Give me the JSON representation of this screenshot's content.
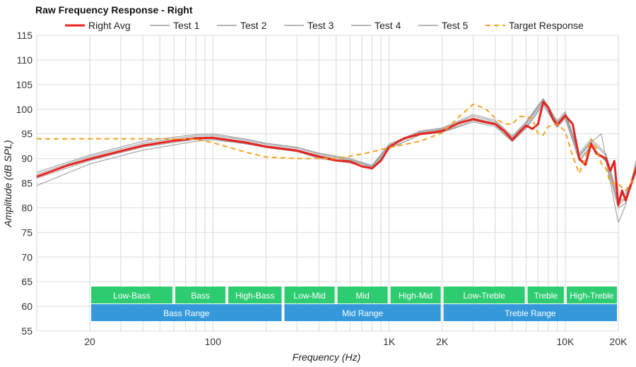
{
  "chart_data": {
    "type": "line",
    "title": "Raw Frequency Response - Right",
    "xlabel": "Frequency (Hz)",
    "ylabel": "Amplitude (dB SPL)",
    "x_scale": "log",
    "xlim": [
      10,
      20000
    ],
    "ylim": [
      55,
      115
    ],
    "y_ticks": [
      55,
      60,
      65,
      70,
      75,
      80,
      85,
      90,
      95,
      100,
      105,
      110,
      115
    ],
    "x_ticks": [
      {
        "value": 20,
        "label": "20"
      },
      {
        "value": 100,
        "label": "100"
      },
      {
        "value": 1000,
        "label": "1K"
      },
      {
        "value": 2000,
        "label": "2K"
      },
      {
        "value": 10000,
        "label": "10K"
      },
      {
        "value": 20000,
        "label": "20K"
      }
    ],
    "colors": {
      "avg": "#e8231f",
      "test": "#9e9e9e",
      "target": "#f5a31a",
      "band": "#2ecc71",
      "range": "#3498db"
    },
    "series": [
      {
        "name": "Right Avg",
        "style": "avg",
        "points": [
          [
            10,
            86.3
          ],
          [
            15,
            88.6
          ],
          [
            20,
            89.9
          ],
          [
            30,
            91.5
          ],
          [
            40,
            92.6
          ],
          [
            60,
            93.6
          ],
          [
            80,
            94.1
          ],
          [
            100,
            94.2
          ],
          [
            150,
            93.3
          ],
          [
            200,
            92.4
          ],
          [
            300,
            91.6
          ],
          [
            400,
            90.4
          ],
          [
            500,
            89.6
          ],
          [
            600,
            89.4
          ],
          [
            700,
            88.4
          ],
          [
            800,
            88.0
          ],
          [
            900,
            89.6
          ],
          [
            1000,
            92.3
          ],
          [
            1200,
            94.0
          ],
          [
            1500,
            95.0
          ],
          [
            1800,
            95.3
          ],
          [
            2000,
            95.6
          ],
          [
            2500,
            97.2
          ],
          [
            3000,
            98.0
          ],
          [
            3500,
            97.4
          ],
          [
            4000,
            97.0
          ],
          [
            4500,
            95.6
          ],
          [
            5000,
            93.8
          ],
          [
            5500,
            95.4
          ],
          [
            6000,
            96.7
          ],
          [
            6500,
            96.0
          ],
          [
            7000,
            97.0
          ],
          [
            7500,
            101.5
          ],
          [
            8000,
            100.4
          ],
          [
            8500,
            98.0
          ],
          [
            9000,
            96.8
          ],
          [
            9500,
            97.8
          ],
          [
            10000,
            98.7
          ],
          [
            11000,
            97.0
          ],
          [
            12000,
            90.0
          ],
          [
            13000,
            88.7
          ],
          [
            14000,
            93.0
          ],
          [
            15000,
            91.0
          ],
          [
            16000,
            90.5
          ],
          [
            17000,
            90.0
          ],
          [
            18000,
            87.5
          ],
          [
            19000,
            89.5
          ],
          [
            20000,
            80.5
          ],
          [
            21000,
            83.5
          ],
          [
            22000,
            81.5
          ],
          [
            24000,
            85.5
          ],
          [
            26000,
            89.3
          ]
        ]
      },
      {
        "name": "Test 1",
        "style": "test",
        "points": [
          [
            10,
            84.5
          ],
          [
            20,
            88.9
          ],
          [
            40,
            91.7
          ],
          [
            80,
            93.5
          ],
          [
            100,
            93.8
          ],
          [
            150,
            93.0
          ],
          [
            200,
            92.3
          ],
          [
            300,
            91.4
          ],
          [
            400,
            90.0
          ],
          [
            600,
            89.1
          ],
          [
            800,
            87.8
          ],
          [
            1000,
            92.0
          ],
          [
            1500,
            94.8
          ],
          [
            2000,
            95.3
          ],
          [
            3000,
            97.4
          ],
          [
            4000,
            96.5
          ],
          [
            5000,
            93.4
          ],
          [
            6000,
            96.1
          ],
          [
            7500,
            100.9
          ],
          [
            9000,
            96.3
          ],
          [
            10000,
            98.1
          ],
          [
            12000,
            89.5
          ],
          [
            14000,
            92.4
          ],
          [
            17000,
            89.4
          ],
          [
            20000,
            79.9
          ],
          [
            22000,
            81.0
          ],
          [
            26000,
            88.7
          ]
        ]
      },
      {
        "name": "Test 2",
        "style": "test",
        "points": [
          [
            10,
            86.8
          ],
          [
            20,
            90.4
          ],
          [
            40,
            93.1
          ],
          [
            80,
            94.6
          ],
          [
            100,
            94.7
          ],
          [
            150,
            93.8
          ],
          [
            200,
            92.9
          ],
          [
            300,
            92.1
          ],
          [
            400,
            90.9
          ],
          [
            600,
            89.8
          ],
          [
            800,
            88.4
          ],
          [
            1000,
            92.7
          ],
          [
            1500,
            95.4
          ],
          [
            2000,
            96.0
          ],
          [
            3000,
            98.6
          ],
          [
            4000,
            97.5
          ],
          [
            5000,
            94.3
          ],
          [
            6000,
            97.2
          ],
          [
            7500,
            102.0
          ],
          [
            9000,
            97.3
          ],
          [
            10000,
            99.2
          ],
          [
            12000,
            90.6
          ],
          [
            14000,
            93.5
          ],
          [
            17000,
            90.6
          ],
          [
            20000,
            81.1
          ],
          [
            22000,
            82.1
          ],
          [
            26000,
            89.8
          ]
        ]
      },
      {
        "name": "Test 3",
        "style": "test",
        "points": [
          [
            10,
            86.0
          ],
          [
            20,
            89.6
          ],
          [
            40,
            92.3
          ],
          [
            80,
            93.9
          ],
          [
            100,
            94.0
          ],
          [
            150,
            93.1
          ],
          [
            200,
            92.2
          ],
          [
            300,
            91.4
          ],
          [
            400,
            90.2
          ],
          [
            600,
            89.3
          ],
          [
            800,
            87.9
          ],
          [
            1000,
            92.1
          ],
          [
            1500,
            94.8
          ],
          [
            2000,
            95.4
          ],
          [
            3000,
            97.7
          ],
          [
            4000,
            96.8
          ],
          [
            5000,
            93.6
          ],
          [
            6000,
            96.4
          ],
          [
            7500,
            101.3
          ],
          [
            9000,
            96.6
          ],
          [
            10000,
            98.4
          ],
          [
            12000,
            89.7
          ],
          [
            14000,
            92.6
          ],
          [
            17000,
            89.6
          ],
          [
            20000,
            77.0
          ],
          [
            22000,
            80.5
          ],
          [
            26000,
            91.5
          ]
        ]
      },
      {
        "name": "Test 4",
        "style": "test",
        "points": [
          [
            10,
            86.5
          ],
          [
            20,
            90.1
          ],
          [
            40,
            92.8
          ],
          [
            80,
            94.3
          ],
          [
            100,
            94.4
          ],
          [
            150,
            93.5
          ],
          [
            200,
            92.6
          ],
          [
            300,
            91.8
          ],
          [
            400,
            90.6
          ],
          [
            600,
            89.6
          ],
          [
            800,
            88.2
          ],
          [
            1000,
            92.5
          ],
          [
            1500,
            95.2
          ],
          [
            2000,
            95.8
          ],
          [
            3000,
            98.2
          ],
          [
            4000,
            97.2
          ],
          [
            5000,
            94.0
          ],
          [
            6000,
            96.9
          ],
          [
            7500,
            101.7
          ],
          [
            9000,
            97.0
          ],
          [
            10000,
            98.9
          ],
          [
            12000,
            90.3
          ],
          [
            14000,
            93.3
          ],
          [
            16000,
            95.0
          ],
          [
            17000,
            90.2
          ],
          [
            20000,
            80.6
          ],
          [
            22000,
            81.8
          ],
          [
            26000,
            90.5
          ]
        ]
      },
      {
        "name": "Test 5",
        "style": "test",
        "points": [
          [
            10,
            87.2
          ],
          [
            20,
            90.7
          ],
          [
            40,
            93.5
          ],
          [
            80,
            94.9
          ],
          [
            100,
            95.0
          ],
          [
            150,
            94.0
          ],
          [
            200,
            93.1
          ],
          [
            300,
            92.3
          ],
          [
            400,
            91.1
          ],
          [
            600,
            90.0
          ],
          [
            800,
            88.6
          ],
          [
            1000,
            92.9
          ],
          [
            1500,
            95.6
          ],
          [
            2000,
            96.2
          ],
          [
            3000,
            98.9
          ],
          [
            4000,
            97.8
          ],
          [
            5000,
            94.6
          ],
          [
            6000,
            97.5
          ],
          [
            7500,
            102.2
          ],
          [
            9000,
            97.6
          ],
          [
            10000,
            99.5
          ],
          [
            12000,
            91.0
          ],
          [
            14000,
            94.0
          ],
          [
            17000,
            91.0
          ],
          [
            20000,
            82.0
          ],
          [
            22000,
            83.0
          ],
          [
            26000,
            88.0
          ]
        ]
      },
      {
        "name": "Target Response",
        "style": "target",
        "points": [
          [
            10,
            94.0
          ],
          [
            40,
            94.0
          ],
          [
            60,
            94.0
          ],
          [
            80,
            93.9
          ],
          [
            100,
            93.2
          ],
          [
            150,
            91.4
          ],
          [
            200,
            90.3
          ],
          [
            300,
            90.0
          ],
          [
            500,
            90.0
          ],
          [
            700,
            90.9
          ],
          [
            1000,
            92.2
          ],
          [
            1500,
            93.5
          ],
          [
            2000,
            95.2
          ],
          [
            2500,
            98.5
          ],
          [
            3000,
            101.0
          ],
          [
            3500,
            100.2
          ],
          [
            4000,
            98.2
          ],
          [
            4500,
            97.0
          ],
          [
            5000,
            97.0
          ],
          [
            5500,
            98.5
          ],
          [
            6000,
            98.6
          ],
          [
            6500,
            98.0
          ],
          [
            7000,
            95.0
          ],
          [
            7500,
            94.8
          ],
          [
            8000,
            96.5
          ],
          [
            8500,
            96.7
          ],
          [
            9000,
            97.0
          ],
          [
            10000,
            95.5
          ],
          [
            11000,
            90.5
          ],
          [
            12000,
            87.0
          ],
          [
            13000,
            90.0
          ],
          [
            14000,
            94.0
          ],
          [
            15000,
            92.0
          ],
          [
            16000,
            89.0
          ],
          [
            17000,
            88.0
          ],
          [
            18000,
            85.0
          ],
          [
            20000,
            84.8
          ],
          [
            22000,
            83.5
          ],
          [
            24000,
            85.5
          ],
          [
            26000,
            85.0
          ]
        ]
      }
    ],
    "bands": [
      {
        "label": "Low-Bass",
        "from": 20,
        "to": 60,
        "row": "top"
      },
      {
        "label": "Bass",
        "from": 60,
        "to": 120,
        "row": "top"
      },
      {
        "label": "High-Bass",
        "from": 120,
        "to": 250,
        "row": "top"
      },
      {
        "label": "Low-Mid",
        "from": 250,
        "to": 500,
        "row": "top"
      },
      {
        "label": "Mid",
        "from": 500,
        "to": 1000,
        "row": "top"
      },
      {
        "label": "High-Mid",
        "from": 1000,
        "to": 2000,
        "row": "top"
      },
      {
        "label": "Low-Treble",
        "from": 2000,
        "to": 6000,
        "row": "top"
      },
      {
        "label": "Treble",
        "from": 6000,
        "to": 10000,
        "row": "top"
      },
      {
        "label": "High-Treble",
        "from": 10000,
        "to": 20000,
        "row": "top"
      },
      {
        "label": "Bass Range",
        "from": 20,
        "to": 250,
        "row": "bottom"
      },
      {
        "label": "Mid Range",
        "from": 250,
        "to": 2000,
        "row": "bottom"
      },
      {
        "label": "Treble Range",
        "from": 2000,
        "to": 20000,
        "row": "bottom"
      }
    ]
  }
}
